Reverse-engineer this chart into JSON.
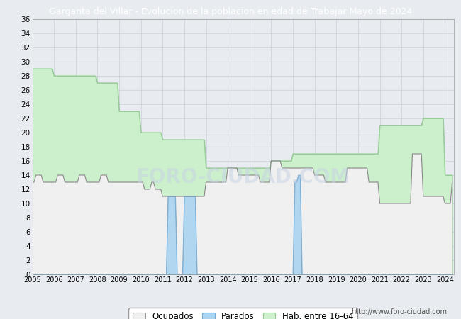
{
  "title": "Garganta del Villar - Evolucion de la poblacion en edad de Trabajar Mayo de 2024",
  "title_bg_color": "#4a7fc0",
  "title_text_color": "white",
  "ylim": [
    0,
    36
  ],
  "yticks": [
    0,
    2,
    4,
    6,
    8,
    10,
    12,
    14,
    16,
    18,
    20,
    22,
    24,
    26,
    28,
    30,
    32,
    34,
    36
  ],
  "bg_color": "#e8ecf0",
  "plot_bg_color": "#e8ecf0",
  "grid_color": "#c8d0d8",
  "watermark": "FORO-CIUDAD.COM",
  "url_text": "http://www.foro-ciudad.com",
  "color_hab": "#ccf0cc",
  "color_hab_edge": "#99cc99",
  "color_ocu": "#f0f0f0",
  "color_ocu_edge": "#888888",
  "color_par": "#aad4f0",
  "color_par_edge": "#77aad0",
  "hab_x": [
    2005.0,
    2005.083,
    2005.167,
    2005.25,
    2005.333,
    2005.417,
    2005.5,
    2005.583,
    2005.667,
    2005.75,
    2005.833,
    2005.917,
    2006.0,
    2006.083,
    2006.167,
    2006.25,
    2006.333,
    2006.417,
    2006.5,
    2006.583,
    2006.667,
    2006.75,
    2006.833,
    2006.917,
    2007.0,
    2007.083,
    2007.167,
    2007.25,
    2007.333,
    2007.417,
    2007.5,
    2007.583,
    2007.667,
    2007.75,
    2007.833,
    2007.917,
    2008.0,
    2008.083,
    2008.167,
    2008.25,
    2008.333,
    2008.417,
    2008.5,
    2008.583,
    2008.667,
    2008.75,
    2008.833,
    2008.917,
    2009.0,
    2009.083,
    2009.167,
    2009.25,
    2009.333,
    2009.417,
    2009.5,
    2009.583,
    2009.667,
    2009.75,
    2009.833,
    2009.917,
    2010.0,
    2010.083,
    2010.167,
    2010.25,
    2010.333,
    2010.417,
    2010.5,
    2010.583,
    2010.667,
    2010.75,
    2010.833,
    2010.917,
    2011.0,
    2011.083,
    2011.167,
    2011.25,
    2011.333,
    2011.417,
    2011.5,
    2011.583,
    2011.667,
    2011.75,
    2011.833,
    2011.917,
    2012.0,
    2012.083,
    2012.167,
    2012.25,
    2012.333,
    2012.417,
    2012.5,
    2012.583,
    2012.667,
    2012.75,
    2012.833,
    2012.917,
    2013.0,
    2013.083,
    2013.167,
    2013.25,
    2013.333,
    2013.417,
    2013.5,
    2013.583,
    2013.667,
    2013.75,
    2013.833,
    2013.917,
    2014.0,
    2014.083,
    2014.167,
    2014.25,
    2014.333,
    2014.417,
    2014.5,
    2014.583,
    2014.667,
    2014.75,
    2014.833,
    2014.917,
    2015.0,
    2015.083,
    2015.167,
    2015.25,
    2015.333,
    2015.417,
    2015.5,
    2015.583,
    2015.667,
    2015.75,
    2015.833,
    2015.917,
    2016.0,
    2016.083,
    2016.167,
    2016.25,
    2016.333,
    2016.417,
    2016.5,
    2016.583,
    2016.667,
    2016.75,
    2016.833,
    2016.917,
    2017.0,
    2017.083,
    2017.167,
    2017.25,
    2017.333,
    2017.417,
    2017.5,
    2017.583,
    2017.667,
    2017.75,
    2017.833,
    2017.917,
    2018.0,
    2018.083,
    2018.167,
    2018.25,
    2018.333,
    2018.417,
    2018.5,
    2018.583,
    2018.667,
    2018.75,
    2018.833,
    2018.917,
    2019.0,
    2019.083,
    2019.167,
    2019.25,
    2019.333,
    2019.417,
    2019.5,
    2019.583,
    2019.667,
    2019.75,
    2019.833,
    2019.917,
    2020.0,
    2020.083,
    2020.167,
    2020.25,
    2020.333,
    2020.417,
    2020.5,
    2020.583,
    2020.667,
    2020.75,
    2020.833,
    2020.917,
    2021.0,
    2021.083,
    2021.167,
    2021.25,
    2021.333,
    2021.417,
    2021.5,
    2021.583,
    2021.667,
    2021.75,
    2021.833,
    2021.917,
    2022.0,
    2022.083,
    2022.167,
    2022.25,
    2022.333,
    2022.417,
    2022.5,
    2022.583,
    2022.667,
    2022.75,
    2022.833,
    2022.917,
    2023.0,
    2023.083,
    2023.167,
    2023.25,
    2023.333,
    2023.417,
    2023.5,
    2023.583,
    2023.667,
    2023.75,
    2023.833,
    2023.917,
    2024.0,
    2024.083,
    2024.167,
    2024.25,
    2024.333
  ],
  "hab_y": [
    29,
    29,
    29,
    29,
    29,
    29,
    29,
    29,
    29,
    29,
    29,
    29,
    28,
    28,
    28,
    28,
    28,
    28,
    28,
    28,
    28,
    28,
    28,
    28,
    28,
    28,
    28,
    28,
    28,
    28,
    28,
    28,
    28,
    28,
    28,
    28,
    27,
    27,
    27,
    27,
    27,
    27,
    27,
    27,
    27,
    27,
    27,
    27,
    23,
    23,
    23,
    23,
    23,
    23,
    23,
    23,
    23,
    23,
    23,
    23,
    20,
    20,
    20,
    20,
    20,
    20,
    20,
    20,
    20,
    20,
    20,
    20,
    19,
    19,
    19,
    19,
    19,
    19,
    19,
    19,
    19,
    19,
    19,
    19,
    19,
    19,
    19,
    19,
    19,
    19,
    19,
    19,
    19,
    19,
    19,
    19,
    15,
    15,
    15,
    15,
    15,
    15,
    15,
    15,
    15,
    15,
    15,
    15,
    15,
    15,
    15,
    15,
    15,
    15,
    15,
    15,
    15,
    15,
    15,
    15,
    15,
    15,
    15,
    15,
    15,
    15,
    15,
    15,
    15,
    15,
    15,
    15,
    16,
    16,
    16,
    16,
    16,
    16,
    16,
    16,
    16,
    16,
    16,
    16,
    17,
    17,
    17,
    17,
    17,
    17,
    17,
    17,
    17,
    17,
    17,
    17,
    17,
    17,
    17,
    17,
    17,
    17,
    17,
    17,
    17,
    17,
    17,
    17,
    17,
    17,
    17,
    17,
    17,
    17,
    17,
    17,
    17,
    17,
    17,
    17,
    17,
    17,
    17,
    17,
    17,
    17,
    17,
    17,
    17,
    17,
    17,
    17,
    21,
    21,
    21,
    21,
    21,
    21,
    21,
    21,
    21,
    21,
    21,
    21,
    21,
    21,
    21,
    21,
    21,
    21,
    21,
    21,
    21,
    21,
    21,
    21,
    22,
    22,
    22,
    22,
    22,
    22,
    22,
    22,
    22,
    22,
    22,
    22,
    14,
    14,
    14,
    14,
    14
  ],
  "ocu_x": [
    2005.0,
    2005.083,
    2005.167,
    2005.25,
    2005.333,
    2005.417,
    2005.5,
    2005.583,
    2005.667,
    2005.75,
    2005.833,
    2005.917,
    2006.0,
    2006.083,
    2006.167,
    2006.25,
    2006.333,
    2006.417,
    2006.5,
    2006.583,
    2006.667,
    2006.75,
    2006.833,
    2006.917,
    2007.0,
    2007.083,
    2007.167,
    2007.25,
    2007.333,
    2007.417,
    2007.5,
    2007.583,
    2007.667,
    2007.75,
    2007.833,
    2007.917,
    2008.0,
    2008.083,
    2008.167,
    2008.25,
    2008.333,
    2008.417,
    2008.5,
    2008.583,
    2008.667,
    2008.75,
    2008.833,
    2008.917,
    2009.0,
    2009.083,
    2009.167,
    2009.25,
    2009.333,
    2009.417,
    2009.5,
    2009.583,
    2009.667,
    2009.75,
    2009.833,
    2009.917,
    2010.0,
    2010.083,
    2010.167,
    2010.25,
    2010.333,
    2010.417,
    2010.5,
    2010.583,
    2010.667,
    2010.75,
    2010.833,
    2010.917,
    2011.0,
    2011.083,
    2011.167,
    2011.25,
    2011.333,
    2011.417,
    2011.5,
    2011.583,
    2011.667,
    2011.75,
    2011.833,
    2011.917,
    2012.0,
    2012.083,
    2012.167,
    2012.25,
    2012.333,
    2012.417,
    2012.5,
    2012.583,
    2012.667,
    2012.75,
    2012.833,
    2012.917,
    2013.0,
    2013.083,
    2013.167,
    2013.25,
    2013.333,
    2013.417,
    2013.5,
    2013.583,
    2013.667,
    2013.75,
    2013.833,
    2013.917,
    2014.0,
    2014.083,
    2014.167,
    2014.25,
    2014.333,
    2014.417,
    2014.5,
    2014.583,
    2014.667,
    2014.75,
    2014.833,
    2014.917,
    2015.0,
    2015.083,
    2015.167,
    2015.25,
    2015.333,
    2015.417,
    2015.5,
    2015.583,
    2015.667,
    2015.75,
    2015.833,
    2015.917,
    2016.0,
    2016.083,
    2016.167,
    2016.25,
    2016.333,
    2016.417,
    2016.5,
    2016.583,
    2016.667,
    2016.75,
    2016.833,
    2016.917,
    2017.0,
    2017.083,
    2017.167,
    2017.25,
    2017.333,
    2017.417,
    2017.5,
    2017.583,
    2017.667,
    2017.75,
    2017.833,
    2017.917,
    2018.0,
    2018.083,
    2018.167,
    2018.25,
    2018.333,
    2018.417,
    2018.5,
    2018.583,
    2018.667,
    2018.75,
    2018.833,
    2018.917,
    2019.0,
    2019.083,
    2019.167,
    2019.25,
    2019.333,
    2019.417,
    2019.5,
    2019.583,
    2019.667,
    2019.75,
    2019.833,
    2019.917,
    2020.0,
    2020.083,
    2020.167,
    2020.25,
    2020.333,
    2020.417,
    2020.5,
    2020.583,
    2020.667,
    2020.75,
    2020.833,
    2020.917,
    2021.0,
    2021.083,
    2021.167,
    2021.25,
    2021.333,
    2021.417,
    2021.5,
    2021.583,
    2021.667,
    2021.75,
    2021.833,
    2021.917,
    2022.0,
    2022.083,
    2022.167,
    2022.25,
    2022.333,
    2022.417,
    2022.5,
    2022.583,
    2022.667,
    2022.75,
    2022.833,
    2022.917,
    2023.0,
    2023.083,
    2023.167,
    2023.25,
    2023.333,
    2023.417,
    2023.5,
    2023.583,
    2023.667,
    2023.75,
    2023.833,
    2023.917,
    2024.0,
    2024.083,
    2024.167,
    2024.25,
    2024.333
  ],
  "ocu_y": [
    13,
    13,
    14,
    14,
    14,
    14,
    13,
    13,
    13,
    13,
    13,
    13,
    13,
    13,
    14,
    14,
    14,
    14,
    13,
    13,
    13,
    13,
    13,
    13,
    13,
    13,
    14,
    14,
    14,
    14,
    13,
    13,
    13,
    13,
    13,
    13,
    13,
    13,
    14,
    14,
    14,
    14,
    13,
    13,
    13,
    13,
    13,
    13,
    13,
    13,
    13,
    13,
    13,
    13,
    13,
    13,
    13,
    13,
    13,
    13,
    13,
    13,
    12,
    12,
    12,
    12,
    13,
    13,
    12,
    12,
    12,
    12,
    11,
    11,
    11,
    11,
    11,
    11,
    11,
    11,
    11,
    11,
    11,
    11,
    11,
    11,
    11,
    11,
    11,
    11,
    11,
    11,
    11,
    11,
    11,
    11,
    13,
    13,
    13,
    13,
    13,
    13,
    13,
    13,
    13,
    13,
    13,
    13,
    15,
    15,
    15,
    15,
    15,
    15,
    14,
    14,
    14,
    14,
    14,
    14,
    14,
    14,
    14,
    14,
    14,
    14,
    13,
    13,
    13,
    13,
    13,
    13,
    16,
    16,
    16,
    16,
    16,
    16,
    15,
    15,
    15,
    15,
    15,
    15,
    15,
    15,
    15,
    15,
    15,
    15,
    15,
    15,
    15,
    15,
    15,
    15,
    14,
    14,
    14,
    14,
    14,
    14,
    13,
    13,
    13,
    13,
    13,
    13,
    13,
    13,
    13,
    13,
    13,
    13,
    15,
    15,
    15,
    15,
    15,
    15,
    15,
    15,
    15,
    15,
    15,
    15,
    13,
    13,
    13,
    13,
    13,
    13,
    10,
    10,
    10,
    10,
    10,
    10,
    10,
    10,
    10,
    10,
    10,
    10,
    10,
    10,
    10,
    10,
    10,
    10,
    17,
    17,
    17,
    17,
    17,
    17,
    11,
    11,
    11,
    11,
    11,
    11,
    11,
    11,
    11,
    11,
    11,
    11,
    10,
    10,
    10,
    10,
    13
  ],
  "par_x": [
    2005.0,
    2005.5,
    2006.0,
    2006.5,
    2007.0,
    2007.5,
    2008.0,
    2008.5,
    2009.0,
    2009.5,
    2010.0,
    2010.5,
    2011.0,
    2011.083,
    2011.167,
    2011.25,
    2011.333,
    2011.417,
    2011.5,
    2011.583,
    2011.667,
    2011.75,
    2011.833,
    2011.917,
    2012.0,
    2012.083,
    2012.167,
    2012.25,
    2012.333,
    2012.417,
    2012.5,
    2012.583,
    2012.667,
    2012.75,
    2012.833,
    2012.917,
    2013.0,
    2013.5,
    2014.0,
    2014.5,
    2015.0,
    2015.5,
    2016.0,
    2016.5,
    2017.0,
    2017.083,
    2017.167,
    2017.25,
    2017.333,
    2017.417,
    2017.5,
    2018.0,
    2018.5,
    2019.0,
    2019.5,
    2020.0,
    2020.5,
    2021.0,
    2021.5,
    2022.0,
    2022.5,
    2023.0,
    2023.5,
    2024.0,
    2024.333
  ],
  "par_y": [
    0,
    0,
    0,
    0,
    0,
    0,
    0,
    0,
    0,
    0,
    0,
    0,
    0,
    0,
    0,
    11,
    11,
    11,
    11,
    11,
    0,
    0,
    0,
    0,
    11,
    11,
    11,
    11,
    11,
    11,
    11,
    0,
    0,
    0,
    0,
    0,
    0,
    0,
    0,
    0,
    0,
    0,
    0,
    0,
    0,
    13,
    13,
    14,
    14,
    0,
    0,
    0,
    0,
    0,
    0,
    0,
    0,
    0,
    0,
    0,
    0,
    0,
    0,
    0,
    0
  ]
}
